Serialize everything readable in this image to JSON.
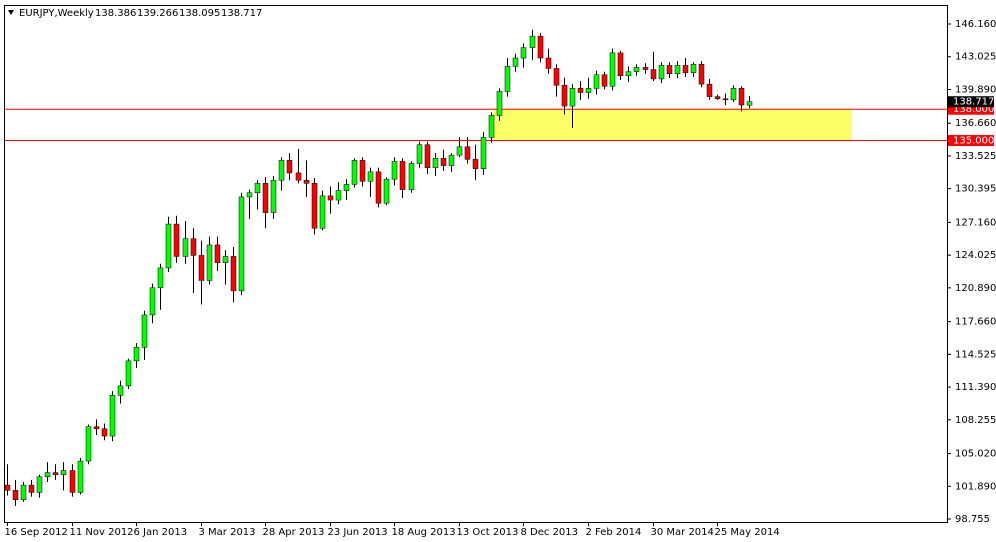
{
  "chart_data": {
    "type": "candlestick",
    "title": "EURJPY,Weekly",
    "categories": [
      "16 Sep 2012",
      null,
      null,
      null,
      null,
      null,
      null,
      null,
      "11 Nov 2012",
      null,
      null,
      null,
      null,
      null,
      null,
      null,
      "6 Jan 2013",
      null,
      null,
      null,
      null,
      null,
      null,
      null,
      "3 Mar 2013",
      null,
      null,
      null,
      null,
      null,
      null,
      null,
      "28 Apr 2013",
      null,
      null,
      null,
      null,
      null,
      null,
      null,
      "23 Jun 2013",
      null,
      null,
      null,
      null,
      null,
      null,
      null,
      "18 Aug 2013",
      null,
      null,
      null,
      null,
      null,
      null,
      null,
      "13 Oct 2013",
      null,
      null,
      null,
      null,
      null,
      null,
      null,
      "8 Dec 2013",
      null,
      null,
      null,
      null,
      null,
      null,
      null,
      "2 Feb 2014",
      null,
      null,
      null,
      null,
      null,
      null,
      null,
      "30 Mar 2014",
      null,
      null,
      null,
      null,
      null,
      null,
      null,
      "25 May 2014",
      null,
      null,
      null,
      null
    ],
    "open": [
      102.0,
      101.5,
      100.6,
      102.0,
      101.3,
      102.8,
      103.2,
      103.0,
      103.4,
      101.3,
      104.3,
      107.6,
      107.4,
      106.7,
      110.6,
      111.5,
      113.9,
      115.2,
      118.3,
      120.9,
      122.8,
      127.0,
      123.9,
      125.6,
      124.0,
      121.6,
      125.0,
      123.3,
      123.9,
      120.6,
      129.6,
      130.0,
      130.9,
      128.1,
      131.2,
      133.1,
      131.9,
      131.2,
      130.9,
      126.6,
      129.7,
      129.3,
      130.2,
      130.8,
      133.1,
      131.1,
      132.0,
      129.0,
      131.3,
      133.0,
      130.3,
      132.8,
      134.6,
      132.4,
      133.3,
      132.6,
      133.6,
      134.4,
      133.2,
      132.3,
      135.3,
      137.4,
      139.7,
      142.1,
      142.9,
      143.9,
      145.0,
      142.9,
      141.9,
      140.3,
      138.3,
      140.0,
      139.6,
      140.0,
      141.3,
      140.2,
      143.4,
      141.2,
      141.6,
      142.0,
      141.8,
      140.9,
      142.2,
      141.4,
      142.2,
      141.5,
      142.3,
      140.4,
      139.2,
      139.0,
      138.9,
      140.0,
      138.386
    ],
    "high": [
      104.0,
      102.5,
      102.3,
      102.5,
      103.0,
      104.2,
      104.0,
      104.2,
      104.0,
      104.6,
      107.8,
      108.3,
      107.9,
      111.0,
      112.0,
      114.1,
      115.6,
      118.7,
      121.3,
      123.2,
      127.7,
      127.8,
      127.3,
      126.6,
      125.4,
      125.8,
      125.8,
      124.5,
      124.8,
      130.0,
      130.3,
      131.2,
      131.5,
      131.6,
      133.4,
      133.8,
      134.2,
      133.1,
      131.4,
      130.2,
      130.6,
      131.0,
      131.3,
      133.3,
      133.4,
      132.4,
      132.4,
      131.5,
      133.4,
      133.3,
      133.0,
      134.9,
      134.9,
      133.8,
      134.1,
      133.8,
      135.3,
      135.3,
      134.6,
      135.8,
      137.7,
      140.0,
      142.9,
      143.3,
      144.3,
      145.6,
      145.3,
      143.8,
      142.3,
      141.0,
      140.4,
      140.7,
      141.0,
      141.7,
      141.6,
      143.8,
      143.6,
      142.1,
      142.3,
      142.4,
      143.5,
      142.5,
      142.5,
      142.6,
      142.9,
      142.5,
      142.6,
      140.9,
      139.4,
      139.5,
      140.3,
      140.2,
      139.266
    ],
    "low": [
      101.0,
      100.0,
      100.4,
      100.9,
      100.8,
      102.3,
      102.5,
      101.5,
      100.9,
      101.1,
      104.0,
      106.8,
      106.3,
      106.2,
      109.8,
      111.2,
      113.2,
      114.0,
      117.5,
      118.8,
      122.4,
      123.3,
      123.2,
      120.4,
      119.3,
      121.2,
      122.5,
      121.2,
      119.5,
      120.2,
      127.5,
      128.4,
      126.6,
      127.5,
      130.2,
      131.2,
      130.9,
      129.6,
      126.0,
      126.4,
      128.0,
      128.9,
      129.3,
      130.5,
      130.6,
      129.6,
      128.6,
      128.8,
      130.7,
      129.5,
      130.0,
      132.4,
      131.8,
      131.6,
      132.1,
      132.0,
      133.4,
      132.8,
      131.2,
      131.7,
      134.8,
      136.9,
      139.2,
      141.6,
      142.0,
      142.7,
      142.5,
      141.4,
      139.2,
      137.5,
      136.2,
      138.9,
      139.0,
      139.4,
      139.9,
      139.8,
      140.8,
      140.6,
      141.2,
      141.4,
      140.7,
      140.5,
      141.0,
      141.0,
      141.1,
      141.1,
      140.1,
      138.9,
      138.9,
      138.4,
      138.7,
      137.8,
      138.095
    ],
    "close": [
      101.5,
      100.6,
      102.0,
      101.3,
      102.8,
      103.2,
      103.0,
      103.4,
      101.3,
      104.3,
      107.6,
      107.4,
      106.7,
      110.6,
      111.5,
      113.9,
      115.2,
      118.3,
      120.9,
      122.8,
      127.0,
      123.9,
      125.6,
      124.0,
      121.6,
      125.0,
      123.3,
      123.9,
      120.6,
      129.6,
      130.0,
      130.9,
      128.1,
      131.2,
      133.1,
      131.9,
      131.2,
      130.9,
      126.6,
      129.7,
      129.3,
      130.2,
      130.8,
      133.1,
      131.1,
      132.0,
      129.0,
      131.3,
      133.0,
      130.3,
      132.8,
      134.6,
      132.4,
      133.3,
      132.6,
      133.6,
      134.4,
      133.2,
      132.3,
      135.3,
      137.4,
      139.7,
      142.1,
      142.9,
      143.9,
      145.0,
      142.9,
      141.9,
      140.3,
      138.3,
      140.0,
      139.6,
      140.0,
      141.3,
      140.2,
      143.4,
      141.2,
      141.6,
      142.0,
      141.8,
      140.9,
      142.2,
      141.4,
      142.2,
      141.5,
      142.3,
      140.4,
      139.2,
      139.0,
      138.9,
      140.0,
      138.4,
      138.717
    ],
    "up_color": "#00ff00",
    "down_color": "#ff0000",
    "wick_color": "#000000",
    "ylim": [
      98.468,
      147.98
    ],
    "yticks": [
      {
        "value": 146.16,
        "label": "146.160"
      },
      {
        "value": 143.025,
        "label": "143.025"
      },
      {
        "value": 139.89,
        "label": "139.890"
      },
      {
        "value": 136.66,
        "label": "136.660"
      },
      {
        "value": 133.525,
        "label": "133.525"
      },
      {
        "value": 130.395,
        "label": "130.395"
      },
      {
        "value": 127.16,
        "label": "127.160"
      },
      {
        "value": 124.025,
        "label": "124.025"
      },
      {
        "value": 120.89,
        "label": "120.890"
      },
      {
        "value": 117.66,
        "label": "117.660"
      },
      {
        "value": 114.525,
        "label": "114.525"
      },
      {
        "value": 111.39,
        "label": "111.390"
      },
      {
        "value": 108.255,
        "label": "108.255"
      },
      {
        "value": 105.02,
        "label": "105.020"
      },
      {
        "value": 101.89,
        "label": "101.890"
      },
      {
        "value": 98.755,
        "label": "98.755"
      }
    ],
    "levels": [
      {
        "value": 138,
        "label": "138.000"
      },
      {
        "value": 135,
        "label": "135.000"
      }
    ],
    "level_color": "#ff0000",
    "zone_color": "#ffff66",
    "grid": false
  }
}
